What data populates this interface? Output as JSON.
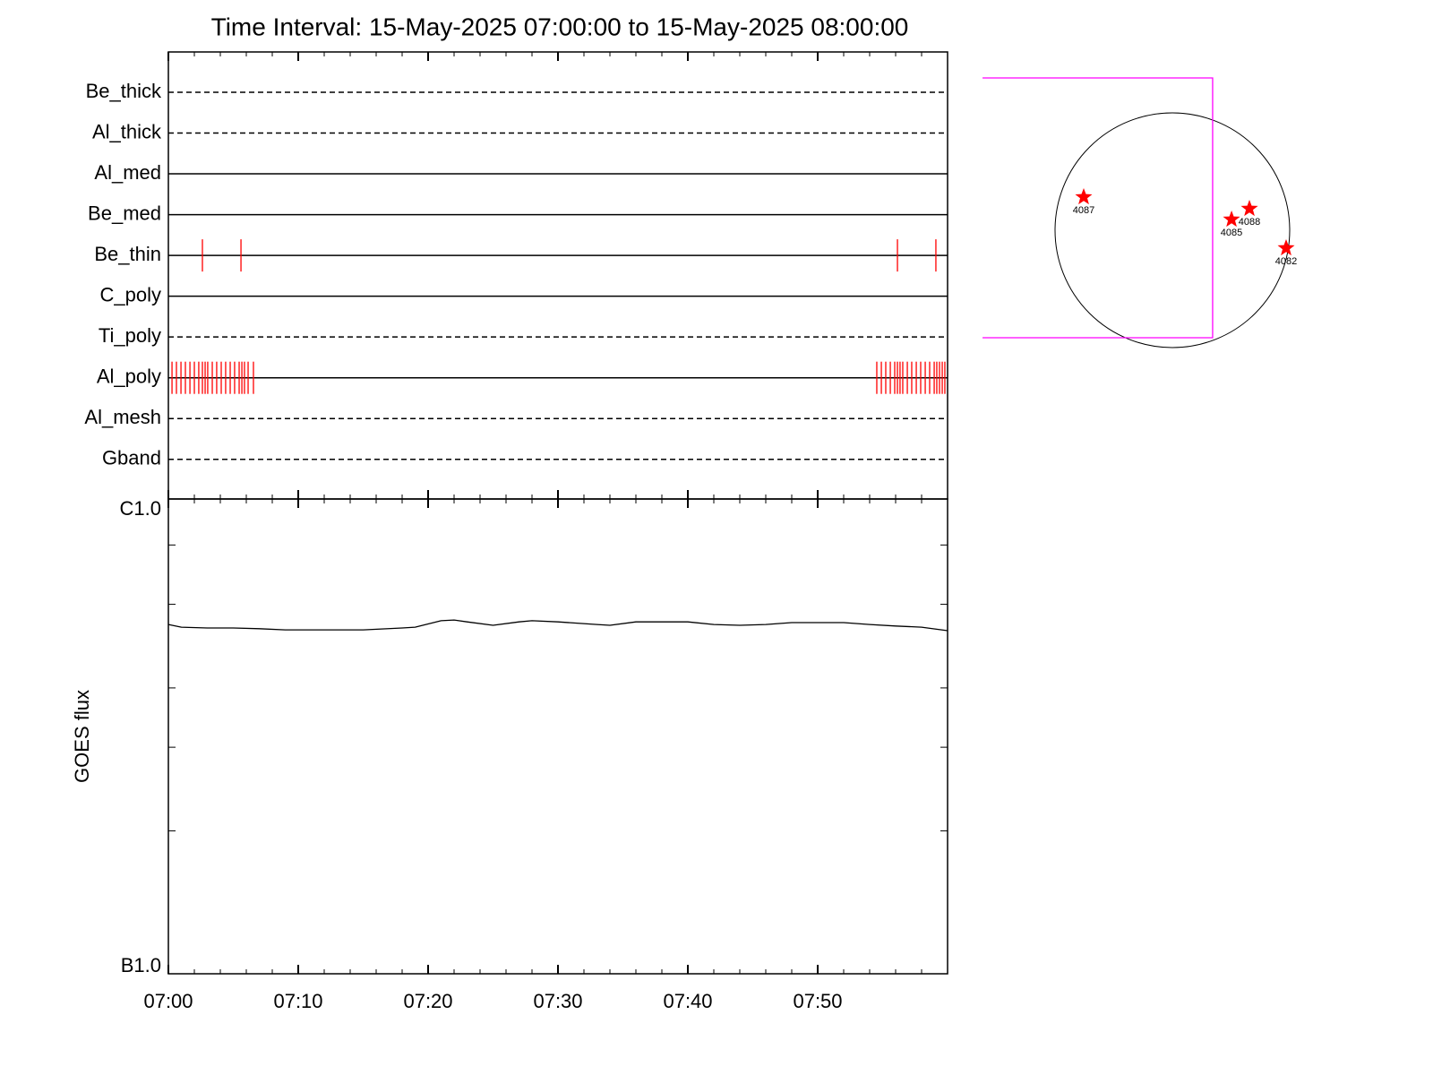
{
  "chart_data": [
    {
      "type": "timeline",
      "title": "Time Interval: 15-May-2025 07:00:00 to 15-May-2025 08:00:00",
      "xlim": [
        0,
        60
      ],
      "event_color": "#ff0000",
      "rows": [
        {
          "name": "Be_thick",
          "style": "dashed",
          "events": []
        },
        {
          "name": "Al_thick",
          "style": "dashed",
          "events": []
        },
        {
          "name": "Al_med",
          "style": "solid",
          "events": []
        },
        {
          "name": "Be_med",
          "style": "solid",
          "events": []
        },
        {
          "name": "Be_thin",
          "style": "solid",
          "events": [
            2.62,
            5.59,
            56.14,
            59.1
          ]
        },
        {
          "name": "C_poly",
          "style": "solid",
          "events": []
        },
        {
          "name": "Ti_poly",
          "style": "dashed",
          "events": []
        },
        {
          "name": "Al_poly",
          "style": "solid",
          "events": [
            0.28,
            0.62,
            0.97,
            1.31,
            1.66,
            2.0,
            2.34,
            2.62,
            2.83,
            3.03,
            3.38,
            3.72,
            4.07,
            4.41,
            4.76,
            5.1,
            5.45,
            5.66,
            5.86,
            6.14,
            6.55,
            54.55,
            54.9,
            55.24,
            55.59,
            55.93,
            56.14,
            56.34,
            56.55,
            56.9,
            57.24,
            57.59,
            57.93,
            58.28,
            58.62,
            58.97,
            59.17,
            59.38,
            59.59,
            59.79
          ]
        },
        {
          "name": "Al_mesh",
          "style": "dashed",
          "events": []
        },
        {
          "name": "Gband",
          "style": "dashed",
          "events": []
        }
      ]
    },
    {
      "type": "line",
      "ylabel": "GOES flux",
      "log": true,
      "color": "#000000",
      "xlim": [
        0,
        60
      ],
      "xticks": [
        {
          "value": 0,
          "label": "07:00"
        },
        {
          "value": 10,
          "label": "07:10"
        },
        {
          "value": 20,
          "label": "07:20"
        },
        {
          "value": 30,
          "label": "07:30"
        },
        {
          "value": 40,
          "label": "07:40"
        },
        {
          "value": 50,
          "label": "07:50"
        }
      ],
      "minor_per_major": 5,
      "ylim": [
        1e-07,
        1e-06
      ],
      "yticks": [
        {
          "value": 1e-07,
          "label": "B1.0"
        },
        {
          "value": 1e-06,
          "label": "C1.0"
        }
      ],
      "yminor": [
        2e-07,
        3e-07,
        4e-07,
        6e-07,
        8e-07
      ],
      "x": [
        0,
        1,
        3,
        5,
        7,
        9,
        12,
        15,
        18,
        19,
        21,
        22,
        23,
        25,
        27,
        28,
        30,
        33,
        34,
        36,
        38,
        40,
        42,
        44,
        46,
        48,
        50,
        52,
        54,
        56,
        58,
        60
      ],
      "values": [
        5.44e-07,
        5.37e-07,
        5.35e-07,
        5.35e-07,
        5.33e-07,
        5.3e-07,
        5.3e-07,
        5.3e-07,
        5.35e-07,
        5.37e-07,
        5.54e-07,
        5.56e-07,
        5.51e-07,
        5.42e-07,
        5.51e-07,
        5.54e-07,
        5.51e-07,
        5.44e-07,
        5.42e-07,
        5.51e-07,
        5.51e-07,
        5.51e-07,
        5.44e-07,
        5.42e-07,
        5.44e-07,
        5.49e-07,
        5.49e-07,
        5.49e-07,
        5.44e-07,
        5.4e-07,
        5.37e-07,
        5.28e-07
      ]
    }
  ],
  "sun_map": {
    "radius": 950,
    "limb_color": "#000000",
    "fov_color": "#ff00ff",
    "region_color": "#ff0000",
    "fov": {
      "xlim": [
        -1537,
        326
      ],
      "ylim": [
        -870,
        1233
      ]
    },
    "regions": [
      {
        "label": "4087",
        "x": -718,
        "y": 268
      },
      {
        "label": "4088",
        "x": 624,
        "y": 174
      },
      {
        "label": "4085",
        "x": 479,
        "y": 87
      },
      {
        "label": "4082",
        "x": 921,
        "y": -145
      }
    ]
  }
}
